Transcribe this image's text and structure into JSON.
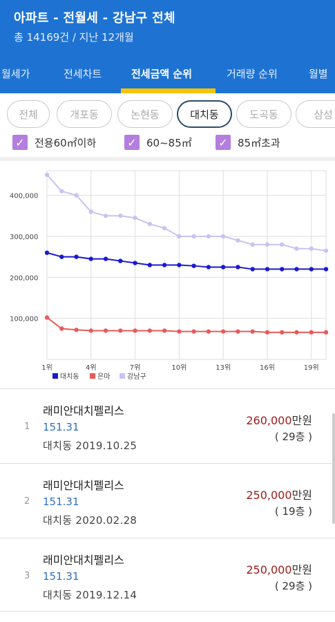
{
  "header": {
    "title": "아파트 - 전월세 - 강남구 전체",
    "subtitle": "총 14169건 / 지난 12개월"
  },
  "tabs": [
    {
      "label": "월세가"
    },
    {
      "label": "전세차트"
    },
    {
      "label": "전세금액 순위"
    },
    {
      "label": "거래량 순위"
    },
    {
      "label": "월별"
    }
  ],
  "chips": [
    {
      "label": "전체"
    },
    {
      "label": "개포동"
    },
    {
      "label": "논현동"
    },
    {
      "label": "대치동"
    },
    {
      "label": "도곡동"
    },
    {
      "label": "삼성"
    }
  ],
  "filters": [
    {
      "label": "전용60㎡이하",
      "checked": true
    },
    {
      "label": "60~85㎡",
      "checked": true
    },
    {
      "label": "85㎡초과",
      "checked": true
    }
  ],
  "chart_data": {
    "type": "line",
    "x": [
      1,
      2,
      3,
      4,
      5,
      6,
      7,
      8,
      9,
      10,
      11,
      12,
      13,
      14,
      15,
      16,
      17,
      18,
      19,
      20
    ],
    "x_tick_labels": [
      "1위",
      "4위",
      "7위",
      "10위",
      "13위",
      "16위",
      "19위"
    ],
    "y_tick_labels": [
      "100,000",
      "200,000",
      "300,000",
      "400,000"
    ],
    "ylim": [
      0,
      460000
    ],
    "series": [
      {
        "name": "대치동",
        "color": "#1a1ad0",
        "values": [
          260000,
          250000,
          250000,
          245000,
          245000,
          240000,
          235000,
          230000,
          230000,
          230000,
          228000,
          225000,
          225000,
          225000,
          220000,
          220000,
          220000,
          220000,
          220000,
          220000
        ]
      },
      {
        "name": "은마",
        "color": "#e85a5a",
        "values": [
          102000,
          75000,
          72000,
          70000,
          70000,
          70000,
          70000,
          70000,
          70000,
          68000,
          68000,
          68000,
          68000,
          68000,
          68000,
          66000,
          66000,
          66000,
          66000,
          66000
        ]
      },
      {
        "name": "강남구",
        "color": "#c8c3f0",
        "values": [
          450000,
          410000,
          400000,
          360000,
          350000,
          350000,
          345000,
          330000,
          320000,
          300000,
          300000,
          300000,
          300000,
          290000,
          280000,
          280000,
          280000,
          270000,
          270000,
          265000
        ]
      }
    ],
    "grid": true,
    "legend": "bottom-left"
  },
  "list": [
    {
      "rank": "1",
      "name": "래미안대치펠리스",
      "area": "151.31",
      "location": "대치동   2019.10.25",
      "price": "260,000",
      "unit": "만원",
      "floor": "( 29층 )"
    },
    {
      "rank": "2",
      "name": "래미안대치펠리스",
      "area": "151.31",
      "location": "대치동   2020.02.28",
      "price": "250,000",
      "unit": "만원",
      "floor": "( 19층 )"
    },
    {
      "rank": "3",
      "name": "래미안대치펠리스",
      "area": "151.31",
      "location": "대치동   2019.12.14",
      "price": "250,000",
      "unit": "만원",
      "floor": "( 29층 )"
    }
  ]
}
